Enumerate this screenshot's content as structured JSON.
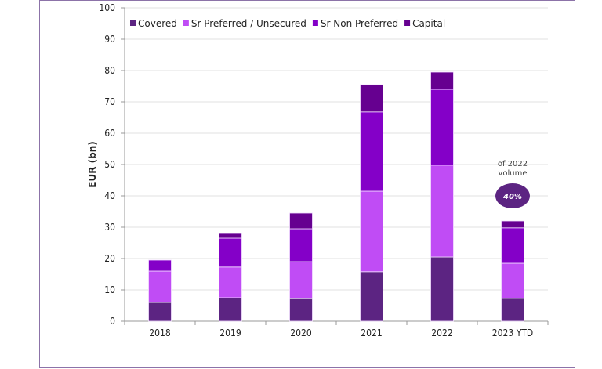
{
  "chart_data": {
    "type": "bar",
    "stacked": true,
    "categories": [
      "2018",
      "2019",
      "2020",
      "2021",
      "2022",
      "2023 YTD"
    ],
    "series": [
      {
        "name": "Covered",
        "color": "#5c2482",
        "values": [
          6.0,
          7.5,
          7.2,
          15.8,
          20.5,
          7.3
        ]
      },
      {
        "name": "Sr Preferred / Unsecured",
        "color": "#c04cf5",
        "values": [
          10.0,
          9.8,
          11.8,
          25.7,
          29.3,
          11.2
        ]
      },
      {
        "name": "Sr Non Preferred",
        "color": "#8400c8",
        "values": [
          3.5,
          9.2,
          10.5,
          25.3,
          24.2,
          11.3
        ]
      },
      {
        "name": "Capital",
        "color": "#660090",
        "values": [
          0,
          1.5,
          5.0,
          8.7,
          5.5,
          2.2
        ]
      }
    ],
    "title": "",
    "xlabel": "",
    "ylabel": "EUR (bn)",
    "ylim": [
      0,
      100
    ],
    "yticks": [
      0,
      10,
      20,
      30,
      40,
      50,
      60,
      70,
      80,
      90,
      100
    ],
    "grid": true,
    "legend_position": "top-left",
    "annotation": {
      "text_line1": "of 2022",
      "text_line2": "volume",
      "badge": "40%",
      "badge_color": "#5c2482",
      "category": "2023 YTD",
      "value": 40
    }
  }
}
